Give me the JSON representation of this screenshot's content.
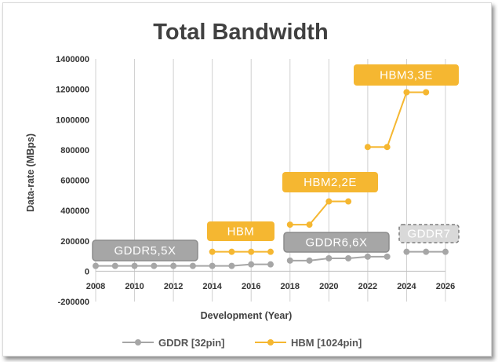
{
  "chart_data": {
    "type": "line",
    "title": "Total Bandwidth",
    "xlabel": "Development (Year)",
    "ylabel": "Data-rate (MBps)",
    "xlim": [
      2008,
      2026
    ],
    "ylim": [
      -200000,
      1400000
    ],
    "x_ticks": [
      "2008",
      "2010",
      "2012",
      "2014",
      "2016",
      "2018",
      "2020",
      "2022",
      "2024",
      "2026"
    ],
    "y_ticks": [
      "1400000",
      "1200000",
      "1000000",
      "800000",
      "600000",
      "400000",
      "200000",
      "0",
      "-200000"
    ],
    "grid": "vertical",
    "legend_position": "bottom",
    "series": [
      {
        "name": "GDDR [32pin]",
        "color": "#a6a6a6",
        "segments": [
          [
            [
              2008,
              35000
            ],
            [
              2009,
              35000
            ],
            [
              2010,
              35000
            ],
            [
              2011,
              35000
            ],
            [
              2012,
              35000
            ],
            [
              2013,
              35000
            ],
            [
              2014,
              35000
            ],
            [
              2015,
              35000
            ],
            [
              2016,
              45000
            ],
            [
              2017,
              45000
            ]
          ],
          [
            [
              2018,
              70000
            ],
            [
              2019,
              70000
            ],
            [
              2020,
              85000
            ],
            [
              2021,
              85000
            ],
            [
              2022,
              96000
            ],
            [
              2023,
              96000
            ]
          ],
          [
            [
              2024,
              128000
            ],
            [
              2025,
              128000
            ],
            [
              2026,
              128000
            ]
          ]
        ]
      },
      {
        "name": "HBM [1024pin]",
        "color": "#f5b731",
        "segments": [
          [
            [
              2014,
              128000
            ],
            [
              2015,
              128000
            ],
            [
              2016,
              128000
            ],
            [
              2017,
              128000
            ]
          ],
          [
            [
              2018,
              307000
            ],
            [
              2019,
              307000
            ],
            [
              2020,
              460000
            ],
            [
              2021,
              460000
            ]
          ],
          [
            [
              2022,
              819000
            ],
            [
              2023,
              819000
            ],
            [
              2024,
              1180000
            ],
            [
              2025,
              1180000
            ]
          ]
        ]
      }
    ],
    "annotations": [
      {
        "text": "GDDR5,5X",
        "style": "gray"
      },
      {
        "text": "HBM",
        "style": "orange"
      },
      {
        "text": "HBM2,2E",
        "style": "orange"
      },
      {
        "text": "HBM3,3E",
        "style": "orange"
      },
      {
        "text": "GDDR6,6X",
        "style": "gray"
      },
      {
        "text": "GDDR7",
        "style": "dashed"
      }
    ]
  }
}
